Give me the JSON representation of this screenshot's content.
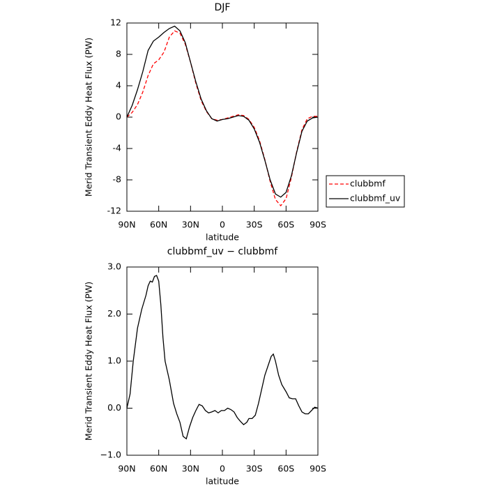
{
  "chart_data": [
    {
      "type": "line",
      "title": "DJF",
      "xlabel": "latitude",
      "ylabel": "Merid Transient Eddy Heat Flux (PW)",
      "x": [
        90,
        85,
        80,
        75,
        70,
        65,
        60,
        55,
        50,
        45,
        40,
        35,
        30,
        25,
        20,
        15,
        10,
        5,
        0,
        -5,
        -10,
        -15,
        -20,
        -25,
        -30,
        -35,
        -40,
        -45,
        -50,
        -55,
        -60,
        -65,
        -70,
        -75,
        -80,
        -85,
        -90
      ],
      "xlim": [
        90,
        -90
      ],
      "xticks": [
        {
          "value": 90,
          "label": "90N"
        },
        {
          "value": 60,
          "label": "60N"
        },
        {
          "value": 30,
          "label": "30N"
        },
        0,
        {
          "value": -30,
          "label": "30S"
        },
        {
          "value": -60,
          "label": "60S"
        },
        {
          "value": -90,
          "label": "90S"
        }
      ],
      "ylim": [
        -12,
        12
      ],
      "yticks": [
        12,
        8,
        4,
        0,
        -4,
        -8,
        -12
      ],
      "legend": "right",
      "series": [
        {
          "name": "clubbmf",
          "color": "#ff0000",
          "style": "dashed",
          "values": [
            0,
            0.6,
            1.6,
            3.2,
            5.3,
            6.8,
            7.3,
            8.3,
            10.2,
            11.0,
            10.7,
            9.3,
            7.0,
            4.3,
            2.1,
            0.7,
            -0.2,
            -0.4,
            -0.3,
            -0.1,
            0.1,
            0.3,
            0.2,
            -0.3,
            -1.3,
            -3.0,
            -5.4,
            -8.2,
            -10.5,
            -11.3,
            -10.4,
            -7.7,
            -4.4,
            -1.6,
            -0.2,
            0.1,
            0.1
          ]
        },
        {
          "name": "clubbmf_uv",
          "color": "#000000",
          "style": "solid",
          "values": [
            0,
            1.5,
            3.5,
            5.8,
            8.5,
            9.7,
            10.2,
            10.8,
            11.3,
            11.6,
            11.0,
            9.5,
            7.0,
            4.5,
            2.3,
            0.8,
            -0.2,
            -0.5,
            -0.3,
            -0.2,
            0.0,
            0.2,
            0.1,
            -0.4,
            -1.5,
            -3.2,
            -5.5,
            -8.0,
            -9.8,
            -10.2,
            -9.6,
            -7.5,
            -4.5,
            -1.8,
            -0.5,
            -0.1,
            0
          ]
        }
      ]
    },
    {
      "type": "line",
      "title": "clubbmf_uv − clubbmf",
      "xlabel": "latitude",
      "ylabel": "Merid Transient Eddy Heat Flux (PW)",
      "x": [
        90,
        87,
        84,
        80,
        76,
        72,
        70,
        68,
        66,
        64,
        62,
        60,
        58,
        56,
        54,
        52,
        50,
        48,
        46,
        43,
        40,
        37,
        34,
        31,
        28,
        25,
        22,
        19,
        16,
        13,
        10,
        7,
        4,
        1,
        -2,
        -5,
        -8,
        -11,
        -14,
        -17,
        -20,
        -23,
        -25,
        -28,
        -31,
        -34,
        -37,
        -40,
        -43,
        -46,
        -48,
        -50,
        -53,
        -56,
        -60,
        -63,
        -66,
        -69,
        -72,
        -75,
        -78,
        -81,
        -84,
        -87,
        -90
      ],
      "xlim": [
        90,
        -90
      ],
      "xticks": [
        {
          "value": 90,
          "label": "90N"
        },
        {
          "value": 60,
          "label": "60N"
        },
        {
          "value": 30,
          "label": "30N"
        },
        0,
        {
          "value": -30,
          "label": "30S"
        },
        {
          "value": -60,
          "label": "60S"
        },
        {
          "value": -90,
          "label": "90S"
        }
      ],
      "ylim": [
        -1,
        3
      ],
      "yticks": [
        {
          "value": 3,
          "label": "3.0"
        },
        {
          "value": 2,
          "label": "2.0"
        },
        {
          "value": 1,
          "label": "1.0"
        },
        {
          "value": 0,
          "label": "0.0"
        },
        {
          "value": -1,
          "label": "−1.0"
        }
      ],
      "series": [
        {
          "color": "#000000",
          "style": "solid",
          "values": [
            0,
            0.3,
            1.0,
            1.7,
            2.1,
            2.4,
            2.6,
            2.7,
            2.68,
            2.8,
            2.82,
            2.7,
            2.2,
            1.5,
            1.0,
            0.8,
            0.6,
            0.35,
            0.1,
            -0.12,
            -0.3,
            -0.6,
            -0.65,
            -0.4,
            -0.2,
            -0.05,
            0.08,
            0.05,
            -0.05,
            -0.1,
            -0.08,
            -0.05,
            -0.1,
            -0.05,
            -0.05,
            0.0,
            -0.03,
            -0.08,
            -0.2,
            -0.28,
            -0.35,
            -0.3,
            -0.22,
            -0.22,
            -0.15,
            0.1,
            0.4,
            0.7,
            0.9,
            1.1,
            1.15,
            1.0,
            0.7,
            0.5,
            0.35,
            0.22,
            0.2,
            0.2,
            0.05,
            -0.08,
            -0.12,
            -0.12,
            -0.05,
            0.02,
            0
          ]
        }
      ]
    }
  ]
}
